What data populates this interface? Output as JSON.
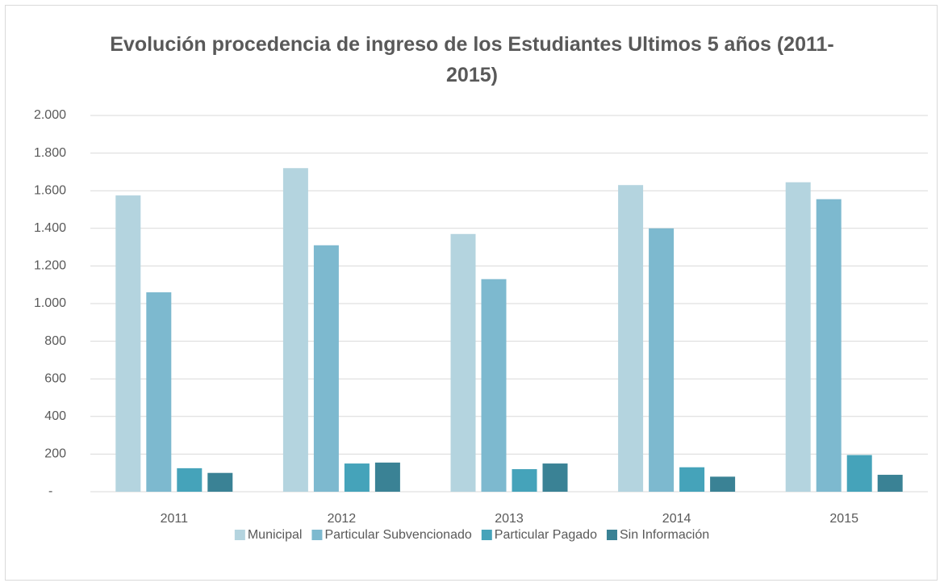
{
  "chart_data": {
    "type": "bar",
    "title": "Evolución procedencia de ingreso de los Estudiantes Ultimos 5 años (2011-2015)",
    "categories": [
      "2011",
      "2012",
      "2013",
      "2014",
      "2015"
    ],
    "series": [
      {
        "name": "Municipal",
        "color": "#b4d4df",
        "values": [
          1575,
          1720,
          1370,
          1630,
          1645
        ]
      },
      {
        "name": "Particular Subvencionado",
        "color": "#7db9cf",
        "values": [
          1060,
          1310,
          1130,
          1400,
          1555
        ]
      },
      {
        "name": "Particular Pagado",
        "color": "#45a3ba",
        "values": [
          125,
          150,
          120,
          130,
          195
        ]
      },
      {
        "name": "Sin Información",
        "color": "#3a8295",
        "values": [
          100,
          155,
          150,
          80,
          90
        ]
      }
    ],
    "ylim": [
      0,
      2000
    ],
    "yticks": [
      {
        "value": 0,
        "label": "-"
      },
      200,
      400,
      600,
      800,
      {
        "value": 1000,
        "label": "1.000"
      },
      {
        "value": 1200,
        "label": "1.200"
      },
      {
        "value": 1400,
        "label": "1.400"
      },
      {
        "value": 1600,
        "label": "1.600"
      },
      {
        "value": 1800,
        "label": "1.800"
      },
      {
        "value": 2000,
        "label": "2.000"
      }
    ],
    "grid": true,
    "legend": "bottom"
  }
}
